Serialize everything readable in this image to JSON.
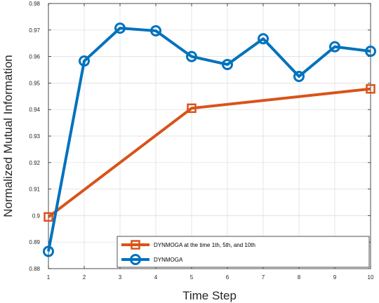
{
  "chart_data": {
    "type": "line",
    "xlabel": "Time Step",
    "ylabel": "Normalized Mutual Information",
    "xlim": [
      1,
      10
    ],
    "ylim": [
      0.88,
      0.98
    ],
    "xticks": [
      "1",
      "2",
      "3",
      "4",
      "5",
      "6",
      "7",
      "8",
      "9",
      "10"
    ],
    "yticks": [
      "0.88",
      "0.89",
      "0.9",
      "0.91",
      "0.92",
      "0.93",
      "0.94",
      "0.95",
      "0.96",
      "0.97",
      "0.98"
    ],
    "grid": true,
    "legend_position": "bottom-right",
    "series": [
      {
        "name": "DYNMOGA at the time 1th, 5th, and 10th",
        "color": "#D95319",
        "marker": "square",
        "x": [
          1,
          5,
          10
        ],
        "y": [
          0.8995,
          0.9405,
          0.9478
        ]
      },
      {
        "name": "DYNMOGA",
        "color": "#0072BD",
        "marker": "circle",
        "x": [
          1,
          2,
          3,
          4,
          5,
          6,
          7,
          8,
          9,
          10
        ],
        "y": [
          0.8865,
          0.9583,
          0.9707,
          0.9697,
          0.96,
          0.957,
          0.9667,
          0.9525,
          0.9637,
          0.962
        ]
      }
    ]
  }
}
